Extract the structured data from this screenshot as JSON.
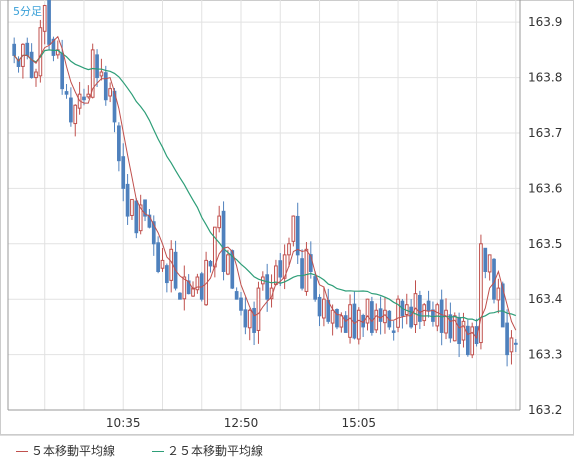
{
  "chart_data": {
    "type": "candlestick",
    "interval_label": "5分足",
    "y_ticks": [
      "163.9",
      "163.8",
      "163.7",
      "163.6",
      "163.5",
      "163.4",
      "163.3",
      "163.2"
    ],
    "ylim": [
      163.2,
      163.94
    ],
    "x_ticks": [
      {
        "label": "10:35",
        "index": 25
      },
      {
        "label": "12:50",
        "index": 52
      },
      {
        "label": "15:05",
        "index": 79
      }
    ],
    "grid": true,
    "legend_position": "bottom-left",
    "colors": {
      "up": "#c0504d",
      "down": "#4f81bd",
      "ma5": "#c0504d",
      "ma25": "#2e9e78",
      "grid": "#e2e2e2",
      "axis_text": "#333333",
      "interval_label": "#39a0d8"
    },
    "series": [
      {
        "name": "5本移動平均線",
        "role": "ma5"
      },
      {
        "name": "25本移動平均線",
        "role": "ma25"
      }
    ],
    "close": [
      163.84,
      163.82,
      163.86,
      163.84,
      163.8,
      163.81,
      163.89,
      163.93,
      163.86,
      163.84,
      163.85,
      163.78,
      163.77,
      163.72,
      163.75,
      163.77,
      163.76,
      163.77,
      163.85,
      163.8,
      163.81,
      163.76,
      163.78,
      163.72,
      163.65,
      163.6,
      163.55,
      163.58,
      163.52,
      163.57,
      163.55,
      163.53,
      163.5,
      163.45,
      163.47,
      163.43,
      163.49,
      163.42,
      163.4,
      163.44,
      163.41,
      163.42,
      163.44,
      163.4,
      163.47,
      163.46,
      163.53,
      163.55,
      163.45,
      163.48,
      163.42,
      163.4,
      163.38,
      163.35,
      163.38,
      163.34,
      163.42,
      163.44,
      163.4,
      163.42,
      163.46,
      163.44,
      163.48,
      163.5,
      163.55,
      163.48,
      163.42,
      163.49,
      163.45,
      163.4,
      163.37,
      163.4,
      163.36,
      163.38,
      163.35,
      163.37,
      163.34,
      163.39,
      163.33,
      163.38,
      163.35,
      163.4,
      163.34,
      163.38,
      163.36,
      163.38,
      163.35,
      163.34,
      163.4,
      163.37,
      163.39,
      163.35,
      163.41,
      163.36,
      163.39,
      163.38,
      163.36,
      163.39,
      163.34,
      163.38,
      163.33,
      163.37,
      163.32,
      163.36,
      163.3,
      163.35,
      163.32,
      163.5,
      163.45,
      163.48,
      163.4,
      163.42,
      163.35,
      163.3,
      163.33,
      163.32
    ]
  },
  "legend": {
    "ma5_label": "５本移動平均線",
    "ma25_label": "２５本移動平均線"
  }
}
